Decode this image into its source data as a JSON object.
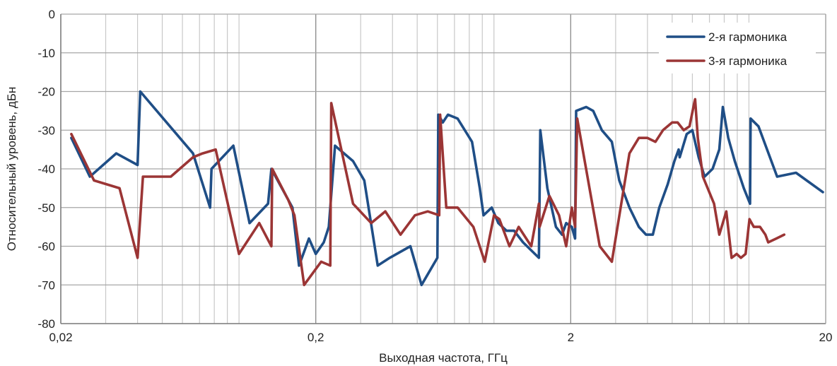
{
  "chart_data": {
    "type": "line",
    "xlabel": "Выходная частота, ГГц",
    "ylabel": "Относительный уровень, дБн",
    "xscale": "log",
    "xlim": [
      0.02,
      20
    ],
    "ylim": [
      -80,
      0
    ],
    "x_ticks": [
      0.02,
      0.2,
      2,
      20
    ],
    "x_tick_labels": [
      "0,02",
      "0,2",
      "2",
      "20"
    ],
    "y_ticks": [
      0,
      -10,
      -20,
      -30,
      -40,
      -50,
      -60,
      -70,
      -80
    ],
    "y_tick_labels": [
      "0",
      "-10",
      "-20",
      "-30",
      "-40",
      "-50",
      "-60",
      "-70",
      "-80"
    ],
    "grid": true,
    "legend_position": "top-right",
    "colors": {
      "series1": "#1f4e86",
      "series2": "#9b3535",
      "grid": "#c8c8c8",
      "axis": "#7f7f7f"
    },
    "series": [
      {
        "name": "2-я гармоника",
        "color": "#1f4e86",
        "points": [
          [
            0.022,
            -32
          ],
          [
            0.026,
            -42
          ],
          [
            0.033,
            -36
          ],
          [
            0.04,
            -39
          ],
          [
            0.041,
            -20
          ],
          [
            0.066,
            -36
          ],
          [
            0.077,
            -50
          ],
          [
            0.078,
            -40
          ],
          [
            0.095,
            -34
          ],
          [
            0.11,
            -54
          ],
          [
            0.13,
            -49
          ],
          [
            0.134,
            -40
          ],
          [
            0.162,
            -50
          ],
          [
            0.172,
            -65
          ],
          [
            0.188,
            -58
          ],
          [
            0.2,
            -62
          ],
          [
            0.215,
            -59
          ],
          [
            0.225,
            -55
          ],
          [
            0.238,
            -34
          ],
          [
            0.28,
            -38
          ],
          [
            0.31,
            -43
          ],
          [
            0.35,
            -65
          ],
          [
            0.39,
            -63
          ],
          [
            0.47,
            -60
          ],
          [
            0.52,
            -70
          ],
          [
            0.6,
            -63
          ],
          [
            0.605,
            -26
          ],
          [
            0.63,
            -28
          ],
          [
            0.66,
            -26
          ],
          [
            0.72,
            -27
          ],
          [
            0.82,
            -33
          ],
          [
            0.88,
            -45
          ],
          [
            0.91,
            -52
          ],
          [
            0.98,
            -50
          ],
          [
            1.04,
            -54
          ],
          [
            1.12,
            -56
          ],
          [
            1.2,
            -56
          ],
          [
            1.3,
            -59
          ],
          [
            1.5,
            -63
          ],
          [
            1.52,
            -30
          ],
          [
            1.62,
            -45
          ],
          [
            1.75,
            -55
          ],
          [
            1.85,
            -57
          ],
          [
            1.92,
            -54
          ],
          [
            2.02,
            -55
          ],
          [
            2.08,
            -58
          ],
          [
            2.1,
            -25
          ],
          [
            2.3,
            -24
          ],
          [
            2.45,
            -25
          ],
          [
            2.65,
            -30
          ],
          [
            2.9,
            -33
          ],
          [
            3.1,
            -43
          ],
          [
            3.4,
            -50
          ],
          [
            3.7,
            -55
          ],
          [
            3.95,
            -57
          ],
          [
            4.2,
            -57
          ],
          [
            4.45,
            -50
          ],
          [
            4.8,
            -44
          ],
          [
            5.1,
            -38
          ],
          [
            5.3,
            -35
          ],
          [
            5.35,
            -37
          ],
          [
            5.7,
            -31
          ],
          [
            6.0,
            -30
          ],
          [
            6.35,
            -37
          ],
          [
            6.7,
            -42
          ],
          [
            7.2,
            -40
          ],
          [
            7.65,
            -35
          ],
          [
            7.9,
            -24
          ],
          [
            8.3,
            -32
          ],
          [
            8.8,
            -38
          ],
          [
            9.55,
            -45
          ],
          [
            10.1,
            -49
          ],
          [
            10.15,
            -27
          ],
          [
            10.9,
            -29
          ],
          [
            12.9,
            -42
          ],
          [
            15.3,
            -41
          ],
          [
            19.5,
            -46
          ]
        ]
      },
      {
        "name": "3-я гармоника",
        "color": "#9b3535",
        "points": [
          [
            0.022,
            -31
          ],
          [
            0.027,
            -43
          ],
          [
            0.034,
            -45
          ],
          [
            0.04,
            -63
          ],
          [
            0.042,
            -42
          ],
          [
            0.054,
            -42
          ],
          [
            0.066,
            -37
          ],
          [
            0.072,
            -36
          ],
          [
            0.081,
            -35
          ],
          [
            0.1,
            -62
          ],
          [
            0.12,
            -54
          ],
          [
            0.134,
            -60
          ],
          [
            0.135,
            -40
          ],
          [
            0.156,
            -48
          ],
          [
            0.165,
            -52
          ],
          [
            0.18,
            -70
          ],
          [
            0.21,
            -64
          ],
          [
            0.228,
            -65
          ],
          [
            0.23,
            -23
          ],
          [
            0.28,
            -49
          ],
          [
            0.33,
            -54
          ],
          [
            0.375,
            -51
          ],
          [
            0.43,
            -57
          ],
          [
            0.49,
            -52
          ],
          [
            0.55,
            -51
          ],
          [
            0.61,
            -52
          ],
          [
            0.615,
            -26
          ],
          [
            0.65,
            -50
          ],
          [
            0.72,
            -50
          ],
          [
            0.83,
            -55
          ],
          [
            0.92,
            -64
          ],
          [
            1.0,
            -52
          ],
          [
            1.05,
            -53
          ],
          [
            1.15,
            -60
          ],
          [
            1.25,
            -55
          ],
          [
            1.4,
            -60
          ],
          [
            1.5,
            -49
          ],
          [
            1.51,
            -55
          ],
          [
            1.65,
            -47
          ],
          [
            1.8,
            -52
          ],
          [
            1.92,
            -60
          ],
          [
            2.02,
            -50
          ],
          [
            2.08,
            -55
          ],
          [
            2.12,
            -27
          ],
          [
            2.6,
            -60
          ],
          [
            2.9,
            -64
          ],
          [
            3.4,
            -36
          ],
          [
            3.7,
            -32
          ],
          [
            4.0,
            -32
          ],
          [
            4.3,
            -33
          ],
          [
            4.6,
            -30
          ],
          [
            5.0,
            -28
          ],
          [
            5.25,
            -28
          ],
          [
            5.55,
            -30
          ],
          [
            5.85,
            -29
          ],
          [
            6.1,
            -23
          ],
          [
            6.15,
            -22
          ],
          [
            6.3,
            -32
          ],
          [
            6.6,
            -42
          ],
          [
            7.3,
            -49
          ],
          [
            7.65,
            -57
          ],
          [
            8.15,
            -51
          ],
          [
            8.55,
            -63
          ],
          [
            8.95,
            -62
          ],
          [
            9.3,
            -63
          ],
          [
            9.7,
            -62
          ],
          [
            10.05,
            -53
          ],
          [
            10.45,
            -55
          ],
          [
            11.05,
            -55
          ],
          [
            11.6,
            -57
          ],
          [
            11.9,
            -59
          ],
          [
            12.8,
            -58
          ],
          [
            13.75,
            -57
          ]
        ]
      }
    ]
  }
}
